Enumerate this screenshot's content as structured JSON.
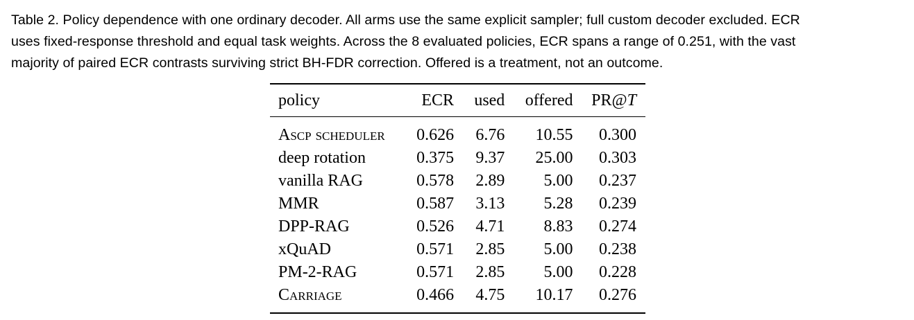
{
  "caption": {
    "line1": "Table 2.  Policy dependence with one ordinary decoder. All arms use the same explicit sampler; full custom decoder excluded. ECR",
    "line2": "uses fixed-response threshold and equal task weights. Across the 8 evaluated policies, ECR spans a range of 0.251, with the vast",
    "line3": "majority of paired ECR contrasts surviving strict BH-FDR correction. Offered is a treatment, not an outcome."
  },
  "table": {
    "headers": {
      "policy": "policy",
      "ecr": "ECR",
      "used": "used",
      "offered": "offered",
      "pr_prefix": "PR@",
      "pr_var": "T"
    },
    "rows": [
      {
        "policy": "Ascp scheduler",
        "ecr": "0.626",
        "used": "6.76",
        "offered": "10.55",
        "pr": "0.300"
      },
      {
        "policy": "deep rotation",
        "ecr": "0.375",
        "used": "9.37",
        "offered": "25.00",
        "pr": "0.303"
      },
      {
        "policy": "vanilla RAG",
        "ecr": "0.578",
        "used": "2.89",
        "offered": "5.00",
        "pr": "0.237"
      },
      {
        "policy": "MMR",
        "ecr": "0.587",
        "used": "3.13",
        "offered": "5.28",
        "pr": "0.239"
      },
      {
        "policy": "DPP-RAG",
        "ecr": "0.526",
        "used": "4.71",
        "offered": "8.83",
        "pr": "0.274"
      },
      {
        "policy": "xQuAD",
        "ecr": "0.571",
        "used": "2.85",
        "offered": "5.00",
        "pr": "0.238"
      },
      {
        "policy": "PM-2-RAG",
        "ecr": "0.571",
        "used": "2.85",
        "offered": "5.00",
        "pr": "0.228"
      },
      {
        "policy": "Carriage",
        "ecr": "0.466",
        "used": "4.75",
        "offered": "10.17",
        "pr": "0.276"
      }
    ]
  }
}
